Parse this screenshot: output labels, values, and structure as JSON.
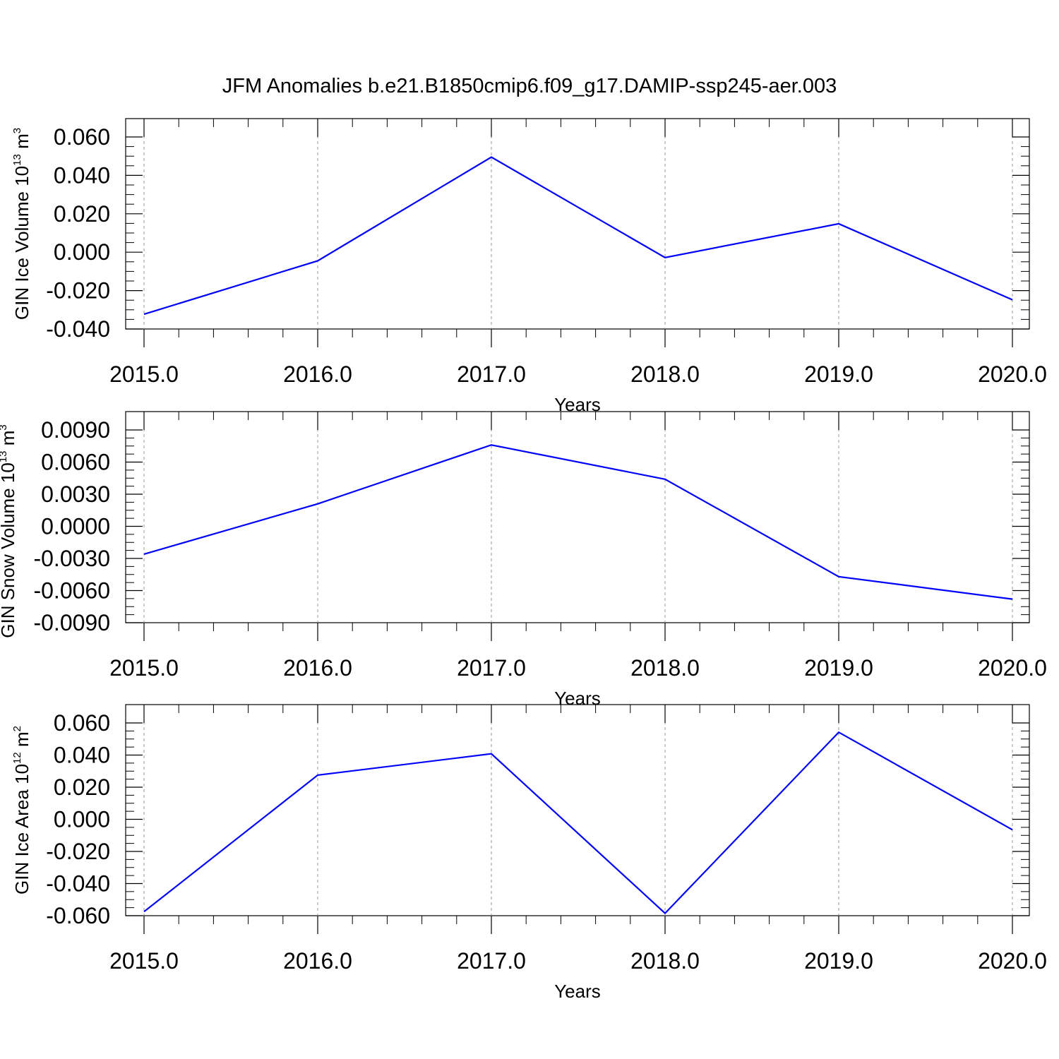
{
  "title": "JFM Anomalies b.e21.B1850cmip6.f09_g17.DAMIP-ssp245-aer.003",
  "colors": {
    "series": "#0000ff",
    "axis": "#000000",
    "grid": "#999999"
  },
  "chart_data": [
    {
      "type": "line",
      "ylabel": {
        "text": "GIN Ice Volume 10",
        "sup": "13",
        "text2": " m",
        "sup2": "3"
      },
      "xlabel": "Years",
      "xlim": [
        2015.0,
        2020.0
      ],
      "ylim": [
        -0.04,
        0.06
      ],
      "x_ticks": [
        "2015.0",
        "2016.0",
        "2017.0",
        "2018.0",
        "2019.0",
        "2020.0"
      ],
      "y_ticks": [
        "0.060",
        "0.040",
        "0.020",
        "0.000",
        "-0.020",
        "-0.040"
      ],
      "y_tick_values": [
        0.06,
        0.04,
        0.02,
        0.0,
        -0.02,
        -0.04
      ],
      "x": [
        2015,
        2016,
        2017,
        2018,
        2019,
        2020
      ],
      "values": [
        -0.0323,
        -0.0045,
        0.0495,
        -0.0028,
        0.0148,
        -0.0248
      ],
      "grid": "vertical dashed at major x ticks"
    },
    {
      "type": "line",
      "ylabel": {
        "text": "GIN Snow Volume 10",
        "sup": "13",
        "text2": " m",
        "sup2": "3"
      },
      "xlabel": "Years",
      "xlim": [
        2015.0,
        2020.0
      ],
      "ylim": [
        -0.009,
        0.009
      ],
      "x_ticks": [
        "2015.0",
        "2016.0",
        "2017.0",
        "2018.0",
        "2019.0",
        "2020.0"
      ],
      "y_ticks": [
        "0.0090",
        "0.0060",
        "0.0030",
        "0.0000",
        "-0.0030",
        "-0.0060",
        "-0.0090"
      ],
      "y_tick_values": [
        0.009,
        0.006,
        0.003,
        0.0,
        -0.003,
        -0.006,
        -0.009
      ],
      "x": [
        2015,
        2016,
        2017,
        2018,
        2019,
        2020
      ],
      "values": [
        -0.0026,
        0.0021,
        0.0076,
        0.0044,
        -0.0047,
        -0.0068
      ],
      "grid": "vertical dashed at major x ticks"
    },
    {
      "type": "line",
      "ylabel": {
        "text": "GIN Ice Area 10",
        "sup": "12",
        "text2": " m",
        "sup2": "2"
      },
      "xlabel": "Years",
      "xlim": [
        2015.0,
        2020.0
      ],
      "ylim": [
        -0.06,
        0.06
      ],
      "x_ticks": [
        "2015.0",
        "2016.0",
        "2017.0",
        "2018.0",
        "2019.0",
        "2020.0"
      ],
      "y_ticks": [
        "0.060",
        "0.040",
        "0.020",
        "0.000",
        "-0.020",
        "-0.040",
        "-0.060"
      ],
      "y_tick_values": [
        0.06,
        0.04,
        0.02,
        0.0,
        -0.02,
        -0.04,
        -0.06
      ],
      "x": [
        2015,
        2016,
        2017,
        2018,
        2019,
        2020
      ],
      "values": [
        -0.0575,
        0.0275,
        0.0408,
        -0.0585,
        0.0542,
        -0.0065
      ],
      "grid": "vertical dashed at major x ticks"
    }
  ]
}
